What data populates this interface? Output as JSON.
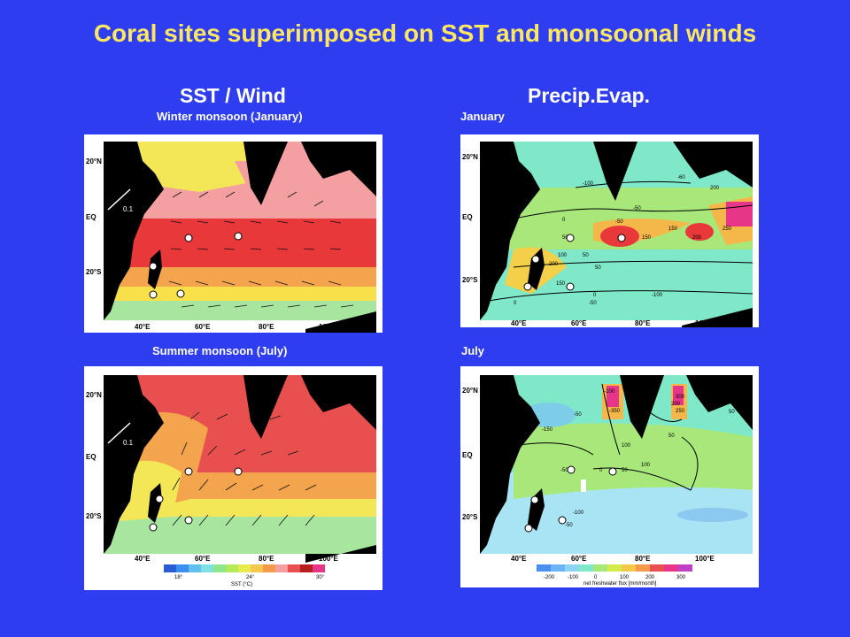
{
  "title": "Coral sites superimposed on SST and monsoonal winds",
  "columns": {
    "left": "SST / Wind",
    "right": "Precip.Evap."
  },
  "panels": {
    "winter_label": "Winter monsoon (January)",
    "summer_label": "Summer monsoon (July)",
    "jan_label": "January",
    "jul_label": "July"
  },
  "axes": {
    "lat": [
      "20°N",
      "EQ",
      "20°S"
    ],
    "lon": [
      "40°E",
      "60°E",
      "80°E",
      "100°E"
    ]
  },
  "wind_scale": "0.1",
  "sst_colorbar": {
    "ticks": [
      "18°",
      "24°",
      "30°"
    ],
    "label": "SST (°C)"
  },
  "flux_colorbar": {
    "ticks": [
      "-200",
      "-100",
      "0",
      "100",
      "200",
      "300"
    ],
    "label": "net freshwater flux [mm/month]"
  },
  "jan_contours": [
    "-100",
    "-50",
    "-60",
    "-50",
    "200",
    "0",
    "50",
    "150",
    "150",
    "200",
    "250",
    "0",
    "50",
    "100",
    "50",
    "200",
    "150",
    "0",
    "-50",
    "-100",
    "0"
  ],
  "jul_contours": [
    "-100",
    "-350",
    "300",
    "200",
    "250",
    "50",
    "-50",
    "-150",
    "100",
    "50",
    "100",
    "-50",
    "0",
    "50",
    "-50",
    "-100",
    "-50"
  ],
  "colors": {
    "background": "#2e3df0",
    "title": "#ffe860",
    "land": "#000000"
  }
}
